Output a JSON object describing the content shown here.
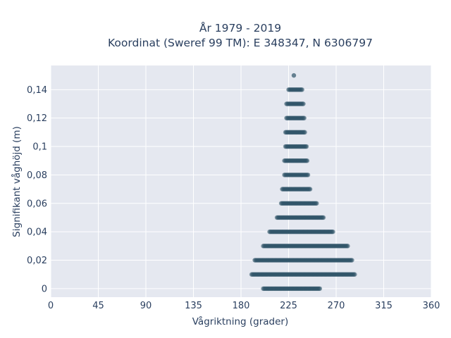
{
  "chart_data": {
    "type": "scatter",
    "title": "År 1979 - 2019",
    "subtitle": "Koordinat (Sweref 99 TM): E 348347, N 6306797",
    "xlabel": "Vågriktning (grader)",
    "ylabel": "Signifikant våghöjd (m)",
    "xlim": [
      0,
      360
    ],
    "ylim": [
      -0.006,
      0.157
    ],
    "xticks": [
      0,
      45,
      90,
      135,
      180,
      225,
      270,
      315,
      360
    ],
    "xtick_labels": [
      "0",
      "45",
      "90",
      "135",
      "180",
      "225",
      "270",
      "315",
      "360"
    ],
    "yticks": [
      0,
      0.02,
      0.04,
      0.06,
      0.08,
      0.1,
      0.12,
      0.14
    ],
    "ytick_labels": [
      "0",
      "0,02",
      "0,04",
      "0,06",
      "0,08",
      "0,1",
      "0,12",
      "0,14"
    ],
    "grid": true,
    "marker_color": "#2f5468",
    "plot_bgcolor": "#e5e8f0",
    "bands": [
      {
        "y": 0.0,
        "x_min": 201,
        "x_max": 255
      },
      {
        "y": 0.01,
        "x_min": 190,
        "x_max": 288
      },
      {
        "y": 0.02,
        "x_min": 193,
        "x_max": 285
      },
      {
        "y": 0.03,
        "x_min": 201,
        "x_max": 281
      },
      {
        "y": 0.04,
        "x_min": 207,
        "x_max": 267
      },
      {
        "y": 0.05,
        "x_min": 214,
        "x_max": 258
      },
      {
        "y": 0.06,
        "x_min": 218,
        "x_max": 252
      },
      {
        "y": 0.07,
        "x_min": 219,
        "x_max": 246
      },
      {
        "y": 0.08,
        "x_min": 221,
        "x_max": 244
      },
      {
        "y": 0.09,
        "x_min": 221,
        "x_max": 243
      },
      {
        "y": 0.1,
        "x_min": 222,
        "x_max": 242
      },
      {
        "y": 0.11,
        "x_min": 222,
        "x_max": 241
      },
      {
        "y": 0.12,
        "x_min": 223,
        "x_max": 240
      },
      {
        "y": 0.13,
        "x_min": 223,
        "x_max": 239
      },
      {
        "y": 0.14,
        "x_min": 225,
        "x_max": 238
      },
      {
        "y": 0.15,
        "x_min": 230,
        "x_max": 230
      }
    ]
  }
}
